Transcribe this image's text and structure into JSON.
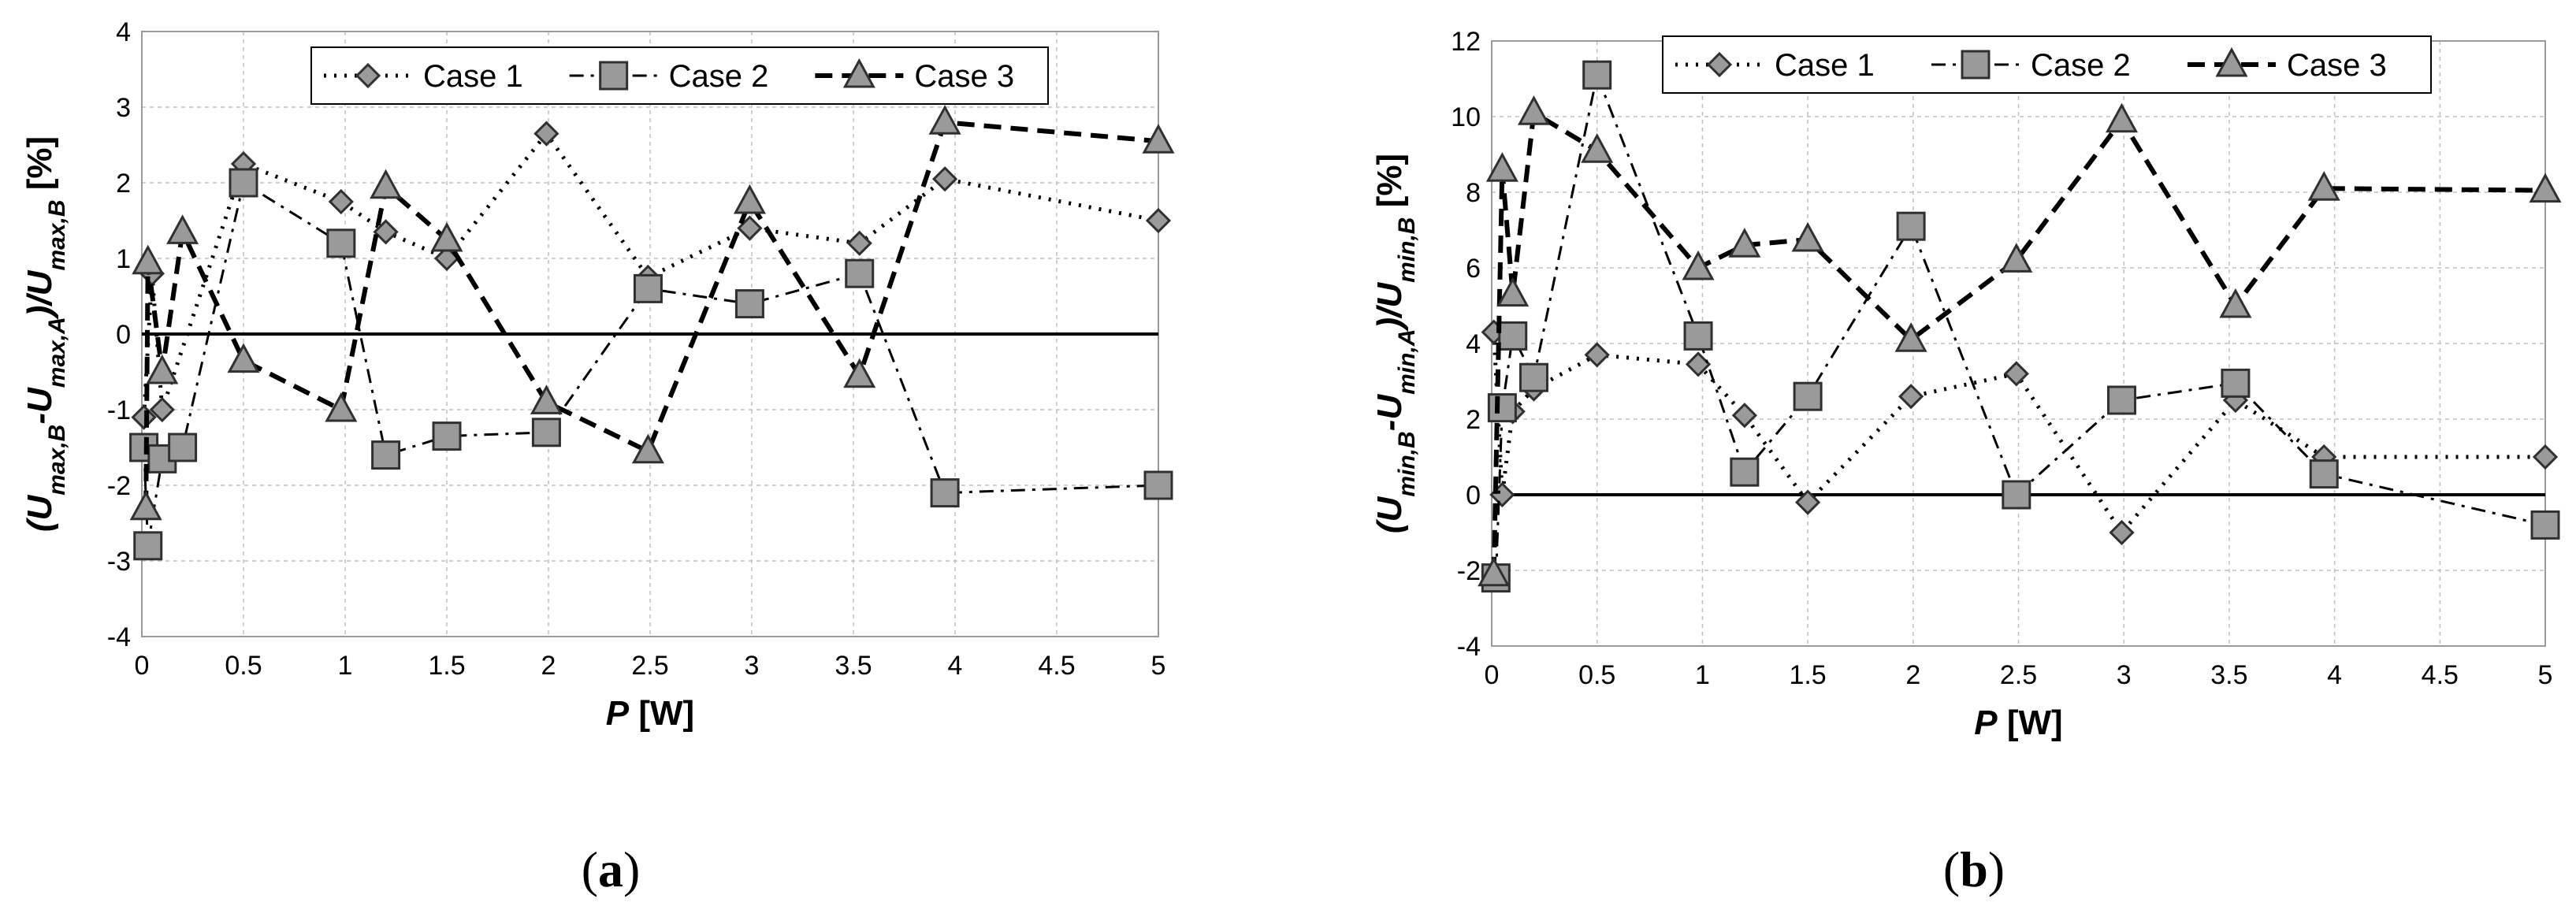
{
  "chart_data": [
    {
      "type": "line",
      "panel_label": "(a)",
      "xlabel": "P [W]",
      "ylabel": "(Umax,B-Umax,A)/Umax,B [%]",
      "ylabel_parts": [
        "(U",
        "max,B",
        "-U",
        "max,A",
        ")/U",
        "max,B",
        " [%]"
      ],
      "xlim": [
        0,
        5
      ],
      "ylim": [
        -4,
        4
      ],
      "xticks": [
        0,
        0.5,
        1,
        1.5,
        2,
        2.5,
        3,
        3.5,
        4,
        4.5,
        5
      ],
      "xtick_labels": [
        "0",
        "0.5",
        "1",
        "1.5",
        "2",
        "2.5",
        "3",
        "3.5",
        "4",
        "4.5",
        "5"
      ],
      "yticks": [
        -4,
        -3,
        -2,
        -1,
        0,
        1,
        2,
        3,
        4
      ],
      "ytick_labels": [
        "-4",
        "-3",
        "-2",
        "-1",
        "0",
        "1",
        "2",
        "3",
        "4"
      ],
      "grid": true,
      "legend_position": "top-right",
      "series": [
        {
          "name": "Case 1",
          "style": "dotted",
          "marker": "diamond",
          "x": [
            0.01,
            0.05,
            0.1,
            0.5,
            0.98,
            1.2,
            1.5,
            1.99,
            2.49,
            2.99,
            3.53,
            3.95,
            5.0
          ],
          "y": [
            -1.1,
            0.8,
            -1.0,
            2.25,
            1.75,
            1.35,
            1.0,
            2.65,
            0.75,
            1.4,
            1.2,
            2.05,
            1.5
          ]
        },
        {
          "name": "Case 2",
          "style": "dashdot",
          "marker": "square",
          "x": [
            0.01,
            0.03,
            0.1,
            0.2,
            0.5,
            0.98,
            1.2,
            1.5,
            1.99,
            2.49,
            2.99,
            3.53,
            3.95,
            5.0
          ],
          "y": [
            -1.5,
            -2.8,
            -1.65,
            -1.5,
            2.0,
            1.2,
            -1.6,
            -1.35,
            -1.3,
            0.6,
            0.4,
            0.8,
            -2.1,
            -2.0
          ]
        },
        {
          "name": "Case 3",
          "style": "dashed",
          "marker": "triangle",
          "x": [
            0.02,
            0.03,
            0.1,
            0.2,
            0.5,
            0.98,
            1.2,
            1.5,
            1.99,
            2.49,
            2.99,
            3.53,
            3.95,
            5.0
          ],
          "y": [
            -2.3,
            0.95,
            -0.5,
            1.35,
            -0.35,
            -1.0,
            1.95,
            1.25,
            -0.9,
            -1.55,
            1.75,
            -0.55,
            2.8,
            2.55
          ]
        }
      ]
    },
    {
      "type": "line",
      "panel_label": "(b)",
      "xlabel": "P [W]",
      "ylabel": "(Umin,B-Umin,A)/Umin,B [%]",
      "ylabel_parts": [
        "(U",
        "min,B",
        "-U",
        "min,A",
        ")/U",
        "min,B",
        " [%]"
      ],
      "xlim": [
        0,
        5
      ],
      "ylim": [
        -4,
        12
      ],
      "xticks": [
        0,
        0.5,
        1,
        1.5,
        2,
        2.5,
        3,
        3.5,
        4,
        4.5,
        5
      ],
      "xtick_labels": [
        "0",
        "0.5",
        "1",
        "1.5",
        "2",
        "2.5",
        "3",
        "3.5",
        "4",
        "4.5",
        "5"
      ],
      "yticks": [
        -4,
        -2,
        0,
        2,
        4,
        6,
        8,
        10,
        12
      ],
      "ytick_labels": [
        "-4",
        "-2",
        "0",
        "2",
        "4",
        "6",
        "8",
        "10",
        "12"
      ],
      "grid": true,
      "legend_position": "top",
      "series": [
        {
          "name": "Case 1",
          "style": "dotted",
          "marker": "diamond",
          "x": [
            0.01,
            0.05,
            0.1,
            0.2,
            0.5,
            0.98,
            1.2,
            1.5,
            1.99,
            2.49,
            2.99,
            3.53,
            3.95,
            5.0
          ],
          "y": [
            4.3,
            0.0,
            2.2,
            2.8,
            3.7,
            3.45,
            2.1,
            -0.2,
            2.6,
            3.2,
            -1.0,
            2.5,
            1.0,
            1.0
          ]
        },
        {
          "name": "Case 2",
          "style": "dashdot",
          "marker": "square",
          "x": [
            0.02,
            0.05,
            0.1,
            0.2,
            0.5,
            0.98,
            1.2,
            1.5,
            1.99,
            2.49,
            2.99,
            3.53,
            3.95,
            5.0
          ],
          "y": [
            -2.2,
            2.3,
            4.2,
            3.1,
            11.1,
            4.2,
            0.6,
            2.6,
            7.1,
            0.0,
            2.5,
            2.95,
            0.55,
            -0.8
          ]
        },
        {
          "name": "Case 3",
          "style": "dashed",
          "marker": "triangle",
          "x": [
            0.01,
            0.05,
            0.1,
            0.2,
            0.5,
            0.98,
            1.2,
            1.5,
            1.99,
            2.49,
            2.99,
            3.53,
            3.95,
            5.0
          ],
          "y": [
            -2.1,
            8.6,
            5.3,
            10.1,
            9.1,
            6.0,
            6.6,
            6.75,
            4.1,
            6.2,
            9.9,
            5.0,
            8.1,
            8.05
          ]
        }
      ]
    }
  ]
}
